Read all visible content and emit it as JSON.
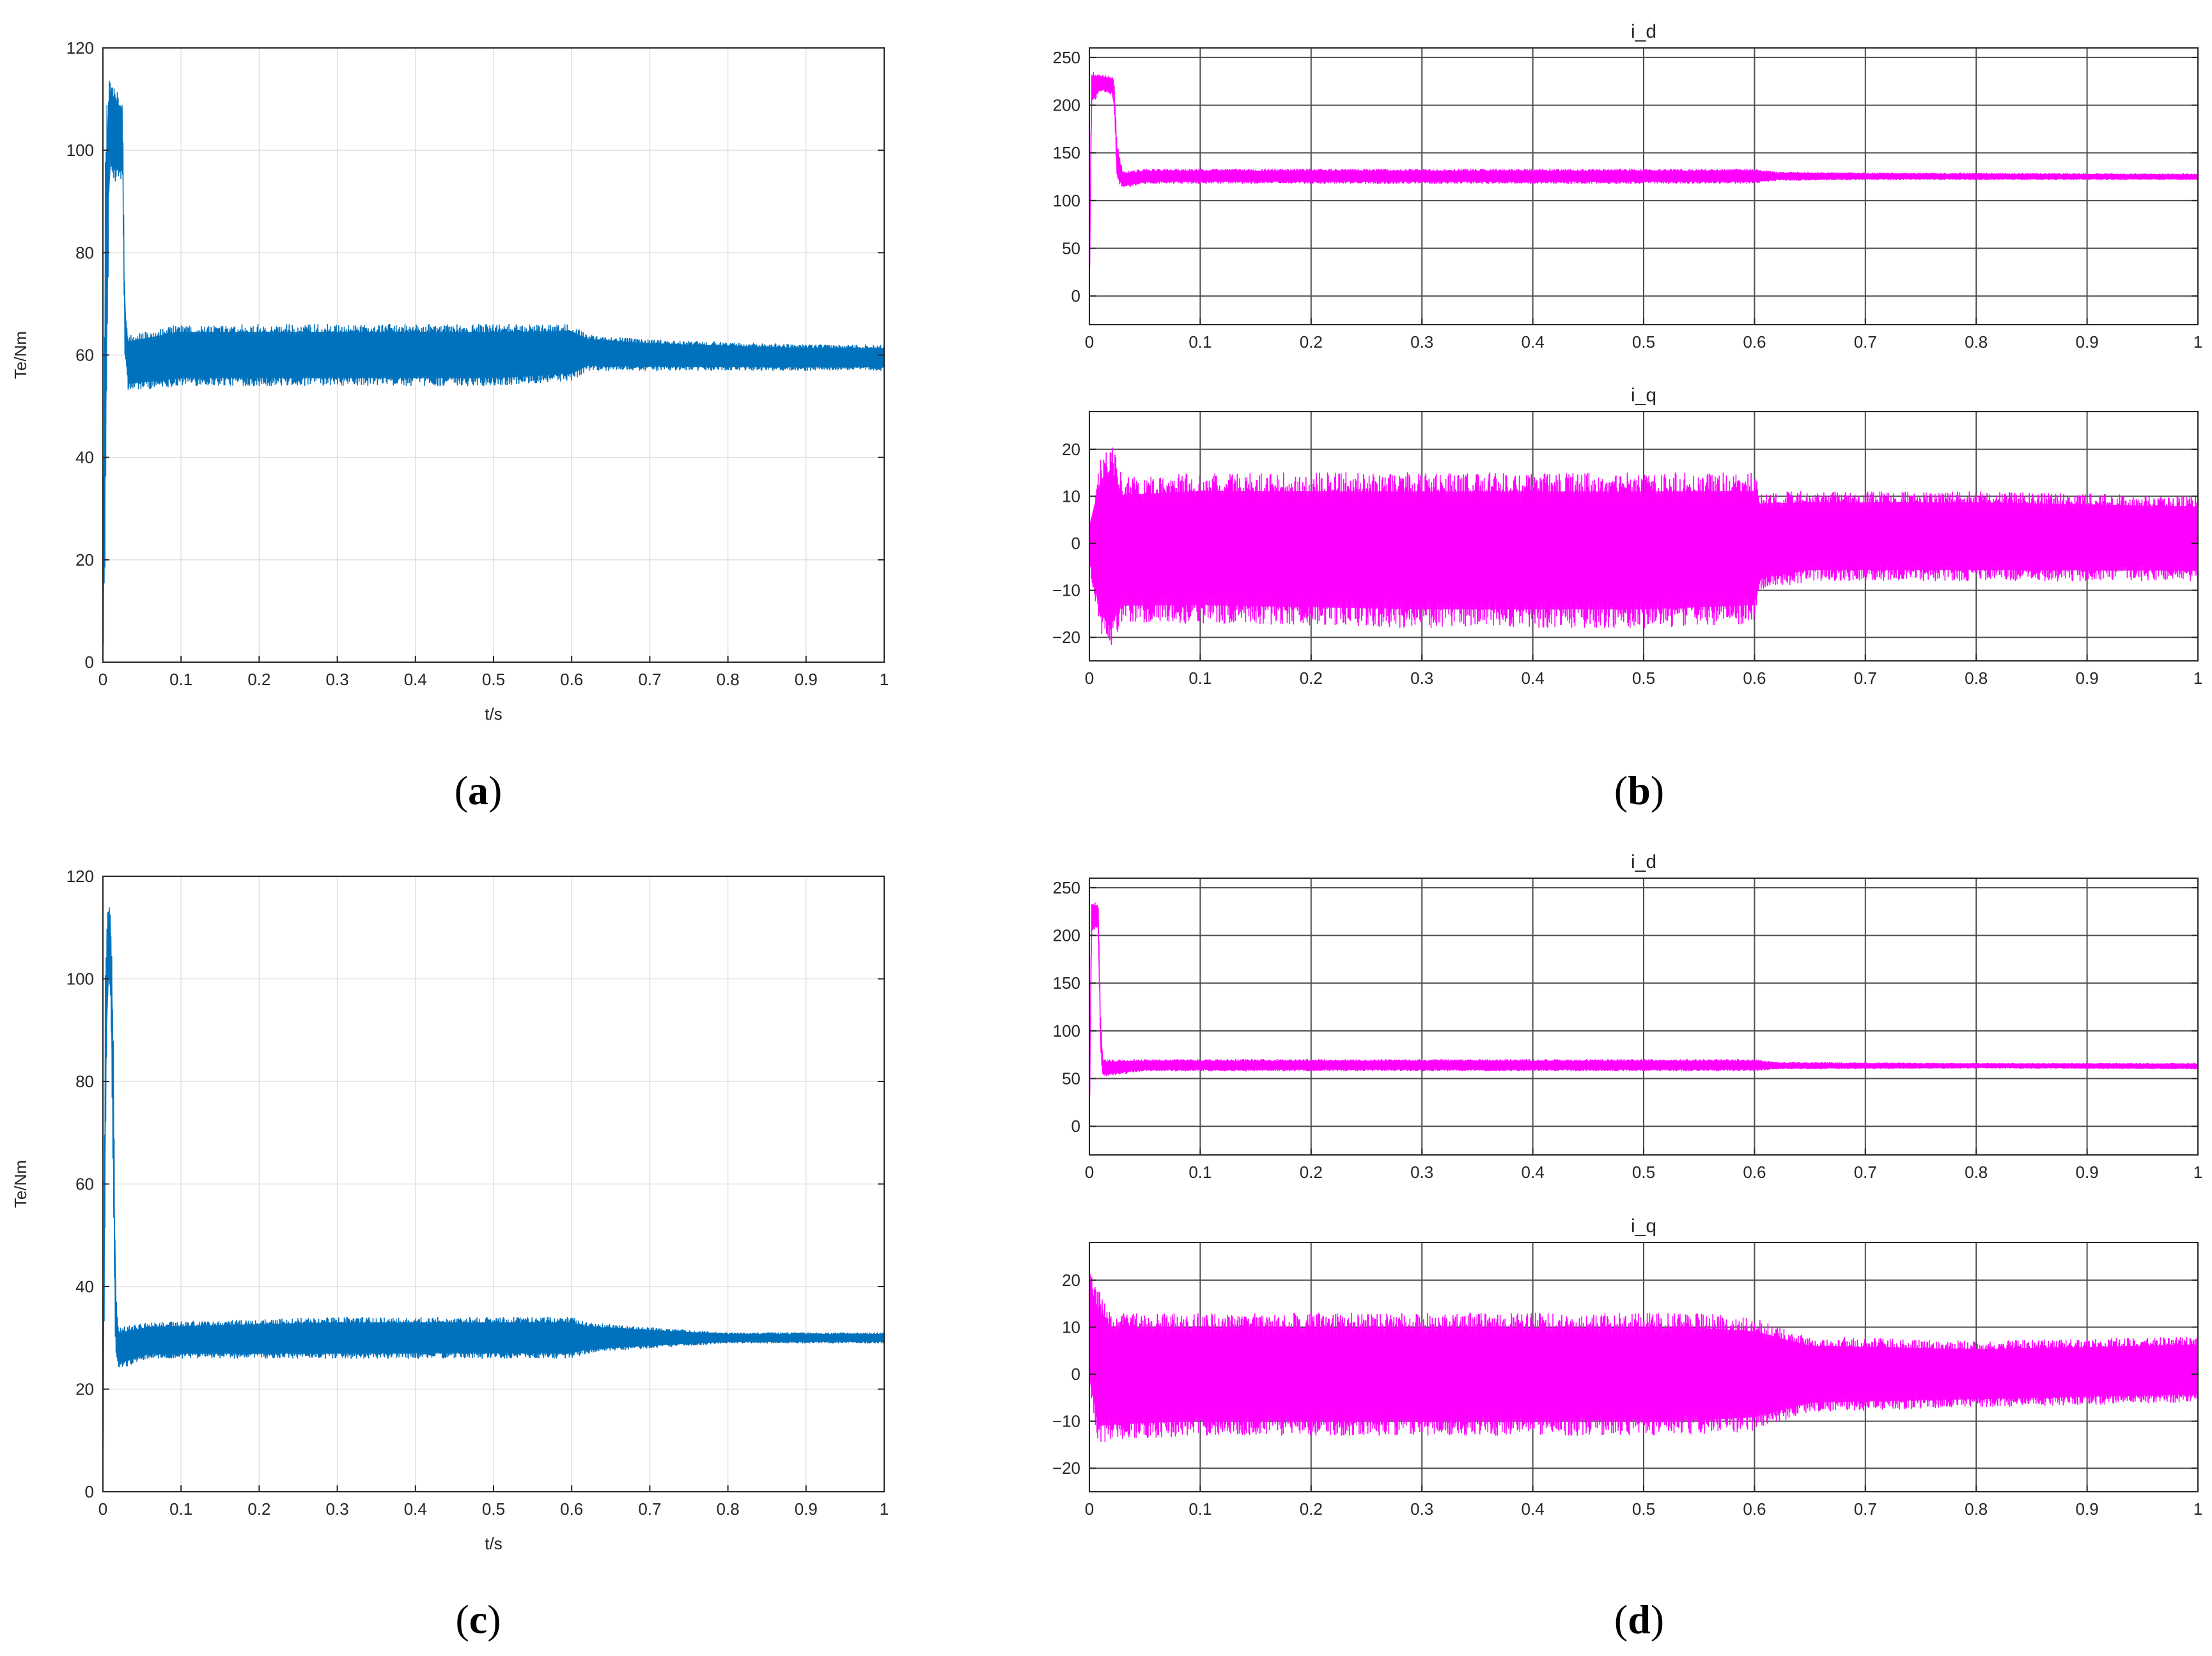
{
  "colors": {
    "torque": "#0072BD",
    "current": "#FF00FF",
    "axis": "#262626",
    "grid_light": "#E0E0E0",
    "grid_dark": "#4D4D4D"
  },
  "panels": [
    {
      "id": "a",
      "caption_letter": "a"
    },
    {
      "id": "b",
      "caption_letter": "b"
    },
    {
      "id": "c",
      "caption_letter": "c"
    },
    {
      "id": "d",
      "caption_letter": "d"
    }
  ],
  "chart_data": [
    {
      "panel": "a",
      "type": "line",
      "style": "light-grid",
      "title": "",
      "xlabel": "t/s",
      "ylabel": "Te/Nm",
      "xlim": [
        0,
        1
      ],
      "ylim": [
        0,
        120
      ],
      "xticks": [
        "0",
        "0.1",
        "0.2",
        "0.3",
        "0.4",
        "0.5",
        "0.6",
        "0.7",
        "0.8",
        "0.9",
        "1"
      ],
      "yticks": [
        "0",
        "20",
        "40",
        "60",
        "80",
        "100",
        "120"
      ],
      "grid": true,
      "series": [
        {
          "color": "#0072BD",
          "envelope": [
            {
              "x": 0.0,
              "lo": 0,
              "hi": 5
            },
            {
              "x": 0.003,
              "lo": 20,
              "hi": 105
            },
            {
              "x": 0.008,
              "lo": 95,
              "hi": 115
            },
            {
              "x": 0.015,
              "lo": 94,
              "hi": 112
            },
            {
              "x": 0.025,
              "lo": 94,
              "hi": 110
            },
            {
              "x": 0.028,
              "lo": 60,
              "hi": 70
            },
            {
              "x": 0.032,
              "lo": 53,
              "hi": 64
            },
            {
              "x": 0.1,
              "lo": 54,
              "hi": 66
            },
            {
              "x": 0.3,
              "lo": 54,
              "hi": 66
            },
            {
              "x": 0.5,
              "lo": 54,
              "hi": 66
            },
            {
              "x": 0.6,
              "lo": 55,
              "hi": 66
            },
            {
              "x": 0.62,
              "lo": 57,
              "hi": 64
            },
            {
              "x": 0.7,
              "lo": 57,
              "hi": 63
            },
            {
              "x": 0.9,
              "lo": 57,
              "hi": 62
            },
            {
              "x": 1.0,
              "lo": 57,
              "hi": 62
            }
          ]
        }
      ]
    },
    {
      "panel": "b-top",
      "type": "line",
      "style": "scope",
      "title": "i_d",
      "xlabel": "",
      "ylabel": "",
      "xlim": [
        0,
        1
      ],
      "ylim": [
        -30,
        260
      ],
      "xticks": [
        "0",
        "0.1",
        "0.2",
        "0.3",
        "0.4",
        "0.5",
        "0.6",
        "0.7",
        "0.8",
        "0.9",
        "1"
      ],
      "yticks": [
        "0",
        "50",
        "100",
        "150",
        "200",
        "250"
      ],
      "grid": true,
      "series": [
        {
          "color": "#FF00FF",
          "envelope": [
            {
              "x": 0.0,
              "lo": 0,
              "hi": 20
            },
            {
              "x": 0.002,
              "lo": 200,
              "hi": 235
            },
            {
              "x": 0.01,
              "lo": 215,
              "hi": 232
            },
            {
              "x": 0.022,
              "lo": 210,
              "hi": 230
            },
            {
              "x": 0.025,
              "lo": 120,
              "hi": 160
            },
            {
              "x": 0.03,
              "lo": 113,
              "hi": 130
            },
            {
              "x": 0.05,
              "lo": 118,
              "hi": 133
            },
            {
              "x": 0.3,
              "lo": 118,
              "hi": 133
            },
            {
              "x": 0.6,
              "lo": 118,
              "hi": 133
            },
            {
              "x": 0.62,
              "lo": 121,
              "hi": 130
            },
            {
              "x": 0.7,
              "lo": 122,
              "hi": 129
            },
            {
              "x": 1.0,
              "lo": 122,
              "hi": 128
            }
          ]
        }
      ]
    },
    {
      "panel": "b-bottom",
      "type": "line",
      "style": "scope",
      "title": "i_q",
      "xlabel": "",
      "ylabel": "",
      "xlim": [
        0,
        1
      ],
      "ylim": [
        -25,
        28
      ],
      "xticks": [
        "0",
        "0.1",
        "0.2",
        "0.3",
        "0.4",
        "0.5",
        "0.6",
        "0.7",
        "0.8",
        "0.9",
        "1"
      ],
      "yticks": [
        "−20",
        "−10",
        "0",
        "10",
        "20"
      ],
      "grid": true,
      "series": [
        {
          "color": "#FF00FF",
          "envelope": [
            {
              "x": 0.0,
              "lo": -5,
              "hi": 5
            },
            {
              "x": 0.01,
              "lo": -20,
              "hi": 18
            },
            {
              "x": 0.02,
              "lo": -22,
              "hi": 21
            },
            {
              "x": 0.03,
              "lo": -17,
              "hi": 14
            },
            {
              "x": 0.1,
              "lo": -17,
              "hi": 15
            },
            {
              "x": 0.3,
              "lo": -18,
              "hi": 15
            },
            {
              "x": 0.5,
              "lo": -18,
              "hi": 15
            },
            {
              "x": 0.6,
              "lo": -17,
              "hi": 15
            },
            {
              "x": 0.605,
              "lo": -10,
              "hi": 11
            },
            {
              "x": 0.65,
              "lo": -8,
              "hi": 11
            },
            {
              "x": 0.8,
              "lo": -8,
              "hi": 11
            },
            {
              "x": 1.0,
              "lo": -8,
              "hi": 10
            }
          ]
        }
      ]
    },
    {
      "panel": "c",
      "type": "line",
      "style": "light-grid",
      "title": "",
      "xlabel": "t/s",
      "ylabel": "Te/Nm",
      "xlim": [
        0,
        1
      ],
      "ylim": [
        0,
        120
      ],
      "xticks": [
        "0",
        "0.1",
        "0.2",
        "0.3",
        "0.4",
        "0.5",
        "0.6",
        "0.7",
        "0.8",
        "0.9",
        "1"
      ],
      "yticks": [
        "0",
        "20",
        "40",
        "60",
        "80",
        "100",
        "120"
      ],
      "grid": true,
      "series": [
        {
          "color": "#0072BD",
          "envelope": [
            {
              "x": 0.0,
              "lo": 0,
              "hi": 5
            },
            {
              "x": 0.003,
              "lo": 60,
              "hi": 105
            },
            {
              "x": 0.006,
              "lo": 100,
              "hi": 115
            },
            {
              "x": 0.01,
              "lo": 95,
              "hi": 113
            },
            {
              "x": 0.013,
              "lo": 60,
              "hi": 95
            },
            {
              "x": 0.016,
              "lo": 26,
              "hi": 40
            },
            {
              "x": 0.02,
              "lo": 24,
              "hi": 32
            },
            {
              "x": 0.06,
              "lo": 26,
              "hi": 33
            },
            {
              "x": 0.3,
              "lo": 26,
              "hi": 34
            },
            {
              "x": 0.6,
              "lo": 26,
              "hi": 34
            },
            {
              "x": 0.62,
              "lo": 27,
              "hi": 33
            },
            {
              "x": 0.7,
              "lo": 28,
              "hi": 32
            },
            {
              "x": 0.8,
              "lo": 29,
              "hi": 31
            },
            {
              "x": 1.0,
              "lo": 29,
              "hi": 31
            }
          ]
        }
      ]
    },
    {
      "panel": "d-top",
      "type": "line",
      "style": "scope",
      "title": "i_d",
      "xlabel": "",
      "ylabel": "",
      "xlim": [
        0,
        1
      ],
      "ylim": [
        -30,
        260
      ],
      "xticks": [
        "0",
        "0.1",
        "0.2",
        "0.3",
        "0.4",
        "0.5",
        "0.6",
        "0.7",
        "0.8",
        "0.9",
        "1"
      ],
      "yticks": [
        "0",
        "50",
        "100",
        "150",
        "200",
        "250"
      ],
      "grid": true,
      "series": [
        {
          "color": "#FF00FF",
          "envelope": [
            {
              "x": 0.0,
              "lo": 0,
              "hi": 20
            },
            {
              "x": 0.002,
              "lo": 200,
              "hi": 238
            },
            {
              "x": 0.008,
              "lo": 210,
              "hi": 232
            },
            {
              "x": 0.01,
              "lo": 80,
              "hi": 120
            },
            {
              "x": 0.012,
              "lo": 52,
              "hi": 70
            },
            {
              "x": 0.05,
              "lo": 58,
              "hi": 70
            },
            {
              "x": 0.3,
              "lo": 58,
              "hi": 70
            },
            {
              "x": 0.6,
              "lo": 58,
              "hi": 70
            },
            {
              "x": 0.62,
              "lo": 60,
              "hi": 67
            },
            {
              "x": 0.8,
              "lo": 61,
              "hi": 66
            },
            {
              "x": 1.0,
              "lo": 60,
              "hi": 66
            }
          ]
        }
      ]
    },
    {
      "panel": "d-bottom",
      "type": "line",
      "style": "scope",
      "title": "i_q",
      "xlabel": "",
      "ylabel": "",
      "xlim": [
        0,
        1
      ],
      "ylim": [
        -25,
        28
      ],
      "xticks": [
        "0",
        "0.1",
        "0.2",
        "0.3",
        "0.4",
        "0.5",
        "0.6",
        "0.7",
        "0.8",
        "0.9",
        "1"
      ],
      "yticks": [
        "−20",
        "−10",
        "0",
        "10",
        "20"
      ],
      "grid": true,
      "series": [
        {
          "color": "#FF00FF",
          "envelope": [
            {
              "x": 0.0,
              "lo": -3,
              "hi": 22
            },
            {
              "x": 0.008,
              "lo": -15,
              "hi": 18
            },
            {
              "x": 0.02,
              "lo": -14,
              "hi": 13
            },
            {
              "x": 0.1,
              "lo": -13,
              "hi": 13
            },
            {
              "x": 0.3,
              "lo": -13,
              "hi": 13
            },
            {
              "x": 0.55,
              "lo": -13,
              "hi": 13
            },
            {
              "x": 0.6,
              "lo": -12,
              "hi": 12
            },
            {
              "x": 0.65,
              "lo": -8,
              "hi": 8
            },
            {
              "x": 0.8,
              "lo": -7,
              "hi": 7
            },
            {
              "x": 1.0,
              "lo": -6,
              "hi": 8
            }
          ]
        }
      ]
    }
  ]
}
